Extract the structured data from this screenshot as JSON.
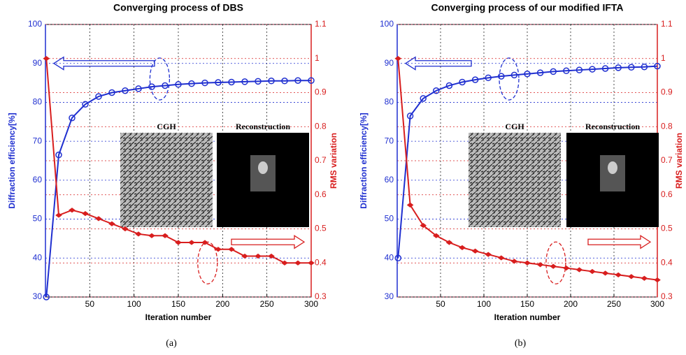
{
  "chart_data": [
    {
      "type": "line",
      "title": "Converging process of DBS",
      "xlabel": "Iteration number",
      "ylabel": "Diffraction efficiency[%]",
      "y2label": "RMS variation",
      "caption": "(a)",
      "insets": [
        "CGH",
        "Reconstruction"
      ],
      "x": [
        1,
        15,
        30,
        45,
        60,
        75,
        90,
        105,
        120,
        135,
        150,
        165,
        180,
        195,
        210,
        225,
        240,
        255,
        270,
        285,
        300
      ],
      "series": [
        {
          "color": "#1f2fd0",
          "values": [
            30,
            66.5,
            76,
            79.5,
            81.5,
            82.5,
            83,
            83.5,
            84,
            84.3,
            84.6,
            84.8,
            85,
            85.1,
            85.2,
            85.3,
            85.4,
            85.5,
            85.5,
            85.6,
            85.6
          ]
        },
        {
          "color": "#d81e1e",
          "axis": "y2",
          "values": [
            1.0,
            0.54,
            0.555,
            0.545,
            0.53,
            0.515,
            0.5,
            0.485,
            0.48,
            0.48,
            0.46,
            0.46,
            0.46,
            0.44,
            0.44,
            0.42,
            0.42,
            0.42,
            0.4,
            0.4,
            0.4
          ]
        }
      ],
      "xlim": [
        0,
        300
      ],
      "xticks": [
        50,
        100,
        150,
        200,
        250,
        300
      ],
      "ylim": [
        30,
        100
      ],
      "yticks": [
        30,
        40,
        50,
        60,
        70,
        80,
        90,
        100
      ],
      "y2lim": [
        0.3,
        1.1
      ],
      "y2ticks": [
        0.3,
        0.4,
        0.5,
        0.6,
        0.7,
        0.8,
        0.9,
        1,
        1.1
      ],
      "grid": true
    },
    {
      "type": "line",
      "title": "Converging process of our modified IFTA",
      "xlabel": "Iteration number",
      "ylabel": "Diffraction efficiency[%]",
      "y2label": "RMS variation",
      "caption": "(b)",
      "insets": [
        "CGH",
        "Reconstruction"
      ],
      "x": [
        1,
        15,
        30,
        45,
        60,
        75,
        90,
        105,
        120,
        135,
        150,
        165,
        180,
        195,
        210,
        225,
        240,
        255,
        270,
        285,
        300
      ],
      "series": [
        {
          "color": "#1f2fd0",
          "values": [
            40,
            76.5,
            81,
            83,
            84.3,
            85.2,
            85.8,
            86.3,
            86.7,
            87,
            87.3,
            87.6,
            87.9,
            88.1,
            88.3,
            88.5,
            88.7,
            88.9,
            89,
            89.1,
            89.3
          ]
        },
        {
          "color": "#d81e1e",
          "axis": "y2",
          "values": [
            1.0,
            0.57,
            0.51,
            0.48,
            0.46,
            0.445,
            0.435,
            0.425,
            0.415,
            0.405,
            0.4,
            0.395,
            0.39,
            0.385,
            0.38,
            0.375,
            0.37,
            0.365,
            0.36,
            0.355,
            0.35
          ]
        }
      ],
      "xlim": [
        0,
        300
      ],
      "xticks": [
        50,
        100,
        150,
        200,
        250,
        300
      ],
      "ylim": [
        30,
        100
      ],
      "yticks": [
        30,
        40,
        50,
        60,
        70,
        80,
        90,
        100
      ],
      "y2lim": [
        0.3,
        1.1
      ],
      "y2ticks": [
        0.3,
        0.4,
        0.5,
        0.6,
        0.7,
        0.8,
        0.9,
        1,
        1.1
      ],
      "grid": true
    }
  ]
}
